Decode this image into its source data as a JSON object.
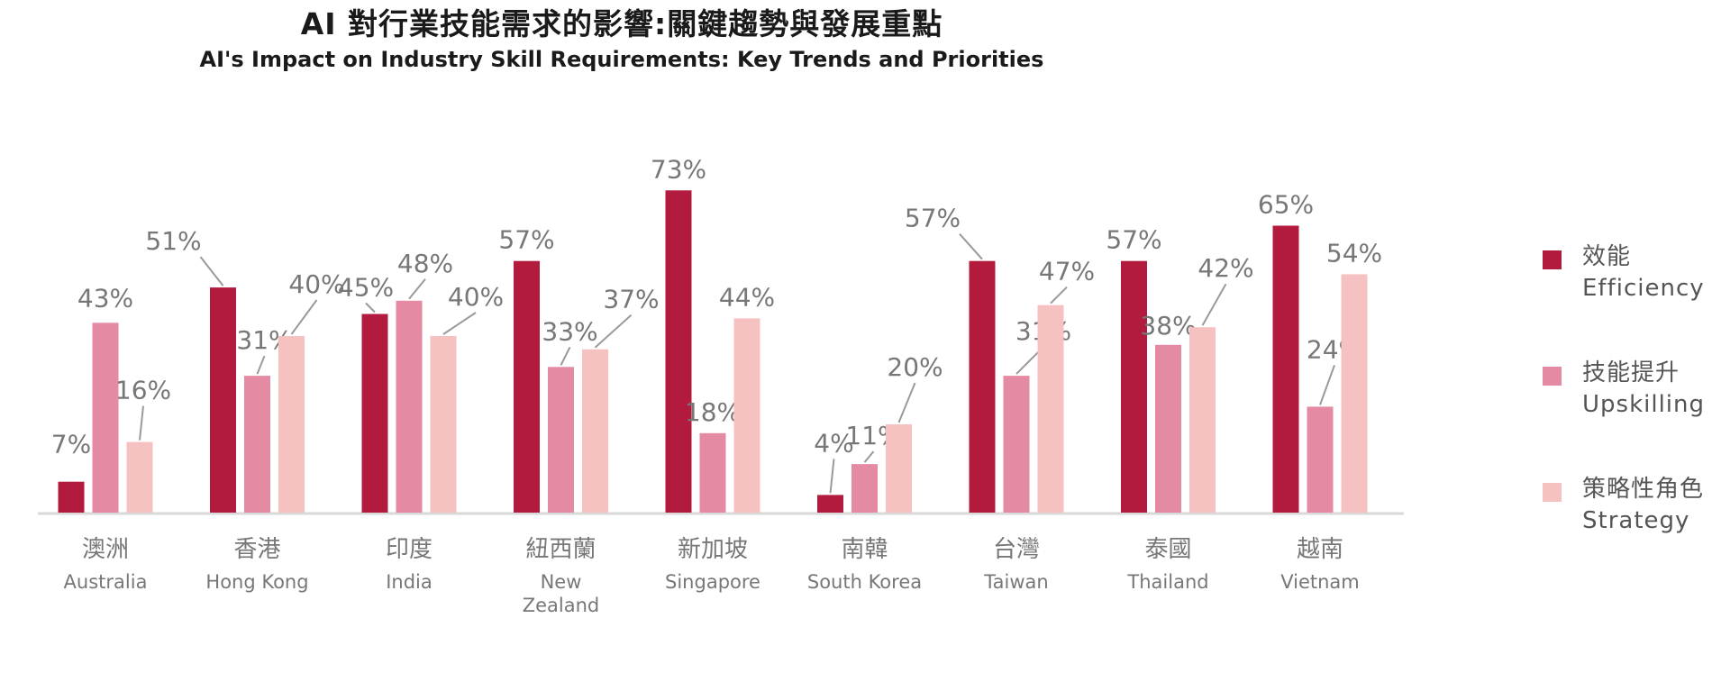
{
  "title": "AI 對行業技能需求的影響:關鍵趨勢與發展重點",
  "subtitle": "AI's Impact on Industry Skill Requirements: Key Trends and Priorities",
  "legend": [
    {
      "zh": "效能",
      "en": "Efficiency",
      "color": "#b31b3e"
    },
    {
      "zh": "技能提升",
      "en": "Upskilling",
      "color": "#e58aa3"
    },
    {
      "zh": "策略性角色",
      "en": "Strategy",
      "color": "#f6c1c1"
    }
  ],
  "chart_data": {
    "type": "bar",
    "title": "AI 對行業技能需求的影響:關鍵趨勢與發展重點",
    "subtitle": "AI's Impact on Industry Skill Requirements: Key Trends and Priorities",
    "categories": [
      "Australia",
      "Hong Kong",
      "India",
      "New Zealand",
      "Singapore",
      "South Korea",
      "Taiwan",
      "Thailand",
      "Vietnam"
    ],
    "category_labels": [
      {
        "zh": "澳洲",
        "en": [
          "Australia"
        ]
      },
      {
        "zh": "香港",
        "en": [
          "Hong Kong"
        ]
      },
      {
        "zh": "印度",
        "en": [
          "India"
        ]
      },
      {
        "zh": "紐西蘭",
        "en": [
          "New",
          "Zealand"
        ]
      },
      {
        "zh": "新加坡",
        "en": [
          "Singapore"
        ]
      },
      {
        "zh": "南韓",
        "en": [
          "South Korea"
        ]
      },
      {
        "zh": "台灣",
        "en": [
          "Taiwan"
        ]
      },
      {
        "zh": "泰國",
        "en": [
          "Thailand"
        ]
      },
      {
        "zh": "越南",
        "en": [
          "Vietnam"
        ]
      }
    ],
    "series": [
      {
        "name": "效能 Efficiency",
        "color": "#b31b3e",
        "values": [
          7,
          51,
          45,
          57,
          73,
          4,
          57,
          57,
          65
        ]
      },
      {
        "name": "技能提升 Upskilling",
        "color": "#e58aa3",
        "values": [
          43,
          31,
          48,
          33,
          18,
          11,
          31,
          38,
          24
        ]
      },
      {
        "name": "策略性角色 Strategy",
        "color": "#f6c1c1",
        "values": [
          16,
          40,
          40,
          37,
          44,
          20,
          47,
          42,
          54
        ]
      }
    ],
    "value_suffix": "%",
    "ylim": [
      0,
      80
    ],
    "grid": false,
    "legend_position": "right"
  }
}
